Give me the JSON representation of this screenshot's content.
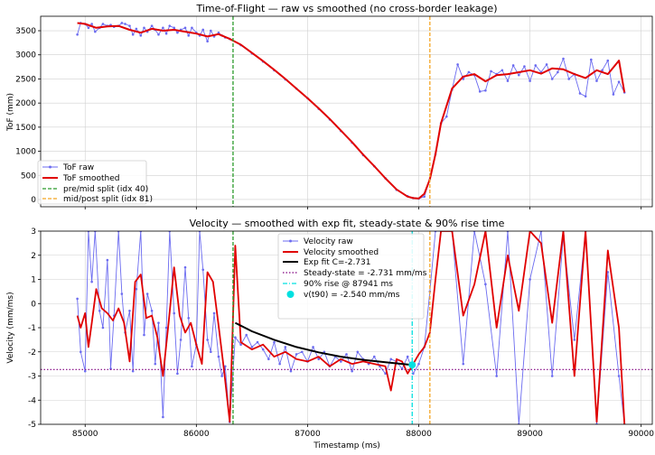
{
  "chart_data": [
    {
      "type": "line",
      "title": "Time-of-Flight — raw vs smoothed (no cross-border leakage)",
      "xlabel": "",
      "ylabel": "ToF (mm)",
      "xlim": [
        84600,
        90100
      ],
      "ylim": [
        -150,
        3800
      ],
      "xticks": [
        85000,
        86000,
        87000,
        88000,
        89000,
        90000
      ],
      "yticks": [
        0,
        500,
        1000,
        1500,
        2000,
        2500,
        3000,
        3500
      ],
      "grid": true,
      "legend_position": "lower-left",
      "colors": {
        "raw": "#6b6bf0",
        "smoothed": "#e00000",
        "split1": "#2a9a2a",
        "split2": "#f5a623"
      },
      "series": [
        {
          "name": "ToF raw",
          "x": [
            84930,
            84960,
            85000,
            85030,
            85060,
            85090,
            85130,
            85160,
            85200,
            85230,
            85260,
            85300,
            85330,
            85360,
            85400,
            85430,
            85460,
            85500,
            85530,
            85560,
            85600,
            85630,
            85660,
            85700,
            85730,
            85760,
            85800,
            85830,
            85860,
            85900,
            85930,
            85960,
            86000,
            86030,
            86060,
            86100,
            86130,
            86160,
            86200,
            86230,
            86260,
            86300,
            86400,
            86500,
            86600,
            86700,
            86800,
            86900,
            87000,
            87100,
            87200,
            87300,
            87400,
            87500,
            87600,
            87700,
            87800,
            87900,
            87950,
            88000,
            88050,
            88100,
            88150,
            88200,
            88250,
            88300,
            88350,
            88400,
            88450,
            88500,
            88550,
            88600,
            88650,
            88700,
            88750,
            88800,
            88850,
            88900,
            88950,
            89000,
            89050,
            89100,
            89150,
            89200,
            89250,
            89300,
            89350,
            89400,
            89450,
            89500,
            89550,
            89600,
            89650,
            89700,
            89750,
            89800,
            89850
          ],
          "y": [
            3420,
            3660,
            3640,
            3560,
            3640,
            3480,
            3560,
            3640,
            3600,
            3620,
            3580,
            3600,
            3660,
            3640,
            3600,
            3420,
            3540,
            3400,
            3560,
            3480,
            3600,
            3520,
            3420,
            3560,
            3440,
            3600,
            3560,
            3460,
            3520,
            3560,
            3400,
            3560,
            3460,
            3400,
            3520,
            3280,
            3500,
            3380,
            3460,
            3400,
            3360,
            3330,
            3200,
            3030,
            2860,
            2680,
            2490,
            2300,
            2100,
            1880,
            1660,
            1420,
            1180,
            920,
            690,
            440,
            200,
            70,
            30,
            20,
            60,
            420,
            940,
            1580,
            1720,
            2280,
            2800,
            2500,
            2640,
            2580,
            2240,
            2260,
            2660,
            2600,
            2680,
            2460,
            2780,
            2580,
            2760,
            2460,
            2780,
            2640,
            2800,
            2500,
            2640,
            2920,
            2500,
            2600,
            2200,
            2140,
            2900,
            2460,
            2680,
            2880,
            2180,
            2440,
            2220
          ],
          "values_note": "Estimated from the plotted curve"
        },
        {
          "name": "ToF smoothed",
          "x": [
            84930,
            85000,
            85100,
            85200,
            85300,
            85400,
            85500,
            85600,
            85700,
            85800,
            85900,
            86000,
            86100,
            86200,
            86300,
            86400,
            86500,
            86600,
            86700,
            86800,
            86900,
            87000,
            87100,
            87200,
            87300,
            87400,
            87500,
            87600,
            87700,
            87800,
            87900,
            87950,
            88000,
            88050,
            88100,
            88150,
            88200,
            88300,
            88400,
            88500,
            88600,
            88700,
            88800,
            88900,
            89000,
            89100,
            89200,
            89300,
            89400,
            89500,
            89600,
            89700,
            89800,
            89850
          ],
          "y": [
            3660,
            3640,
            3560,
            3590,
            3600,
            3520,
            3460,
            3540,
            3500,
            3520,
            3480,
            3440,
            3380,
            3430,
            3330,
            3210,
            3040,
            2870,
            2690,
            2500,
            2300,
            2100,
            1890,
            1670,
            1430,
            1190,
            930,
            690,
            440,
            210,
            60,
            30,
            20,
            120,
            420,
            940,
            1580,
            2300,
            2550,
            2600,
            2450,
            2580,
            2600,
            2640,
            2680,
            2610,
            2720,
            2700,
            2600,
            2520,
            2680,
            2600,
            2880,
            2220
          ]
        }
      ],
      "vlines": [
        {
          "name": "pre/mid split (idx 40)",
          "x": 86330,
          "style": "dashed",
          "color": "#2a9a2a"
        },
        {
          "name": "mid/post split (idx 81)",
          "x": 88100,
          "style": "dashed",
          "color": "#f5a623"
        }
      ]
    },
    {
      "type": "line",
      "title": "Velocity — smoothed with exp fit, steady-state & 90% rise time",
      "xlabel": "Timestamp (ms)",
      "ylabel": "Velocity (mm/ms)",
      "xlim": [
        84600,
        90100
      ],
      "ylim": [
        -5,
        3
      ],
      "xticks": [
        85000,
        86000,
        87000,
        88000,
        89000,
        90000
      ],
      "yticks": [
        -5,
        -4,
        -3,
        -2,
        -1,
        0,
        1,
        2,
        3
      ],
      "grid": true,
      "legend_position": "top-center",
      "colors": {
        "raw": "#6b6bf0",
        "smoothed": "#e00000",
        "fit": "#000000",
        "steady": "#800080",
        "rise": "#00e0e0"
      },
      "series": [
        {
          "name": "Velocity raw",
          "x": [
            84930,
            84960,
            85000,
            85030,
            85060,
            85090,
            85130,
            85160,
            85200,
            85230,
            85260,
            85300,
            85330,
            85360,
            85400,
            85430,
            85460,
            85500,
            85530,
            85560,
            85600,
            85630,
            85660,
            85700,
            85730,
            85760,
            85800,
            85830,
            85860,
            85900,
            85930,
            85960,
            86000,
            86030,
            86060,
            86100,
            86130,
            86160,
            86200,
            86230,
            86260,
            86300,
            86350,
            86400,
            86450,
            86500,
            86550,
            86600,
            86650,
            86700,
            86750,
            86800,
            86850,
            86900,
            86950,
            87000,
            87050,
            87100,
            87150,
            87200,
            87250,
            87300,
            87350,
            87400,
            87450,
            87500,
            87550,
            87600,
            87650,
            87700,
            87750,
            87800,
            87850,
            87900,
            87950,
            88000,
            88050,
            88100,
            88150,
            88200,
            88300,
            88400,
            88500,
            88600,
            88700,
            88800,
            88900,
            89000,
            89100,
            89200,
            89300,
            89400,
            89500,
            89600,
            89700,
            89800,
            89850
          ],
          "y": [
            0.2,
            -2.0,
            -2.8,
            3.0,
            0.9,
            3.0,
            -0.3,
            -1.0,
            1.8,
            -2.7,
            -0.5,
            3.0,
            0.4,
            -1.2,
            -0.3,
            -2.8,
            0.6,
            3.0,
            -1.3,
            0.4,
            -0.3,
            -2.5,
            -0.8,
            -4.7,
            -1.0,
            3.0,
            -0.4,
            -2.9,
            -1.5,
            1.5,
            -0.6,
            -2.6,
            -1.7,
            3.0,
            1.4,
            -1.5,
            -2.0,
            -0.4,
            -2.2,
            -3.0,
            -2.6,
            -4.9,
            -1.4,
            -1.7,
            -1.3,
            -1.8,
            -1.6,
            -1.9,
            -2.3,
            -1.6,
            -2.5,
            -1.8,
            -2.8,
            -2.1,
            -2.0,
            -2.4,
            -1.8,
            -2.3,
            -2.0,
            -2.6,
            -2.2,
            -2.4,
            -2.1,
            -2.8,
            -2.0,
            -2.3,
            -2.5,
            -2.2,
            -2.6,
            -2.9,
            -2.3,
            -2.4,
            -2.7,
            -2.2,
            -2.9,
            -2.5,
            -1.8,
            0.5,
            3.0,
            3.0,
            3.0,
            -2.5,
            3.0,
            0.8,
            -3.0,
            3.0,
            -5.0,
            1.0,
            3.0,
            -3.0,
            2.8,
            -1.5,
            3.0,
            -5.0,
            1.3,
            -3.0,
            -5.0
          ],
          "values_note": "Estimated; raw signal oscillates beyond axis limits"
        },
        {
          "name": "Velocity smoothed",
          "x": [
            84930,
            84960,
            85000,
            85030,
            85060,
            85100,
            85150,
            85200,
            85250,
            85300,
            85350,
            85400,
            85450,
            85500,
            85550,
            85600,
            85650,
            85700,
            85750,
            85800,
            85850,
            85900,
            85950,
            86000,
            86050,
            86100,
            86150,
            86200,
            86250,
            86300,
            86350,
            86400,
            86500,
            86600,
            86700,
            86800,
            86900,
            87000,
            87100,
            87200,
            87300,
            87400,
            87500,
            87600,
            87700,
            87750,
            87800,
            87850,
            87900,
            87950,
            88000,
            88050,
            88100,
            88150,
            88200,
            88300,
            88400,
            88500,
            88600,
            88700,
            88800,
            88900,
            89000,
            89100,
            89200,
            89300,
            89400,
            89500,
            89600,
            89700,
            89800,
            89850
          ],
          "y": [
            -0.5,
            -1.0,
            -0.4,
            -1.8,
            -0.8,
            0.6,
            -0.2,
            -0.4,
            -0.7,
            -0.2,
            -0.8,
            -2.4,
            0.9,
            1.2,
            -0.6,
            -0.5,
            -1.4,
            -3.0,
            -0.8,
            1.5,
            -0.5,
            -1.2,
            -0.8,
            -1.7,
            -2.5,
            1.3,
            0.9,
            -0.9,
            -2.8,
            -4.9,
            2.4,
            -1.6,
            -1.9,
            -1.7,
            -2.2,
            -2.0,
            -2.3,
            -2.4,
            -2.2,
            -2.6,
            -2.3,
            -2.5,
            -2.4,
            -2.5,
            -2.6,
            -3.6,
            -2.3,
            -2.4,
            -2.9,
            -2.5,
            -2.1,
            -1.8,
            -1.2,
            1.0,
            3.0,
            3.0,
            -0.5,
            0.8,
            3.0,
            -1.0,
            2.0,
            -0.3,
            3.0,
            2.5,
            -0.8,
            3.0,
            -3.0,
            3.0,
            -4.9,
            2.2,
            -1.0,
            -5.0
          ]
        },
        {
          "name": "Exp fit  C=-2.731",
          "x": [
            86350,
            86500,
            86700,
            86900,
            87100,
            87300,
            87500,
            87700,
            87900,
            87950
          ],
          "y": [
            -0.8,
            -1.15,
            -1.5,
            -1.8,
            -2.02,
            -2.2,
            -2.33,
            -2.43,
            -2.52,
            -2.54
          ]
        }
      ],
      "hlines": [
        {
          "name": "Steady-state = -2.731 mm/ms",
          "y": -2.731,
          "style": "dotted",
          "color": "#800080"
        }
      ],
      "vlines": [
        {
          "name": "90% rise @ 87941 ms",
          "x": 87941,
          "style": "dashdot",
          "color": "#00e0e0"
        },
        {
          "name": "",
          "x": 86330,
          "style": "dashed",
          "color": "#2a9a2a"
        },
        {
          "name": "",
          "x": 88100,
          "style": "dashed",
          "color": "#f5a623"
        }
      ],
      "points": [
        {
          "name": "v(t90) = -2.540 mm/ms",
          "x": 87941,
          "y": -2.54,
          "color": "#00e0e0"
        }
      ]
    }
  ]
}
